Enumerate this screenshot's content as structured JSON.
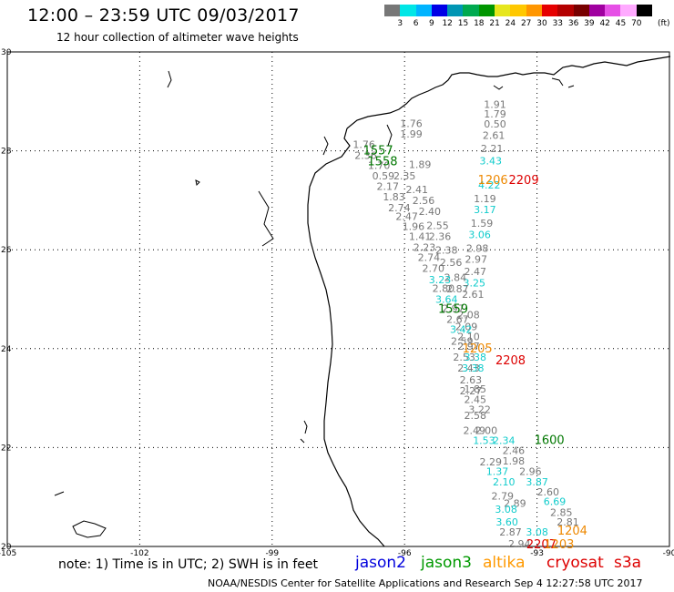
{
  "title": "12:00 – 23:59 UTC 09/03/2017",
  "subtitle": "12 hour collection of altimeter wave heights",
  "colorbar": {
    "colors": [
      "#777777",
      "#00e6e6",
      "#00b4ff",
      "#0000e6",
      "#0096b4",
      "#00aa50",
      "#009600",
      "#e6e61e",
      "#ffc800",
      "#ff9600",
      "#e60000",
      "#b40000",
      "#780000",
      "#a000a0",
      "#e650e6",
      "#ffaaff",
      "#000000"
    ],
    "labels": [
      "3",
      "6",
      "9",
      "12",
      "15",
      "18",
      "21",
      "24",
      "27",
      "30",
      "33",
      "36",
      "39",
      "42",
      "45",
      "70"
    ],
    "unit": "(ft)"
  },
  "map": {
    "x_ticks": [
      "-105",
      "-102",
      "-99",
      "-96",
      "-93",
      "-90"
    ],
    "y_ticks": [
      "20",
      "22",
      "24",
      "26",
      "28",
      "30"
    ],
    "lon_range": [
      -105,
      -90
    ],
    "lat_range": [
      20,
      30
    ]
  },
  "observations": [
    {
      "v": "1.91",
      "lon": -93.95,
      "lat": 28.87,
      "c": "#777777"
    },
    {
      "v": "1.79",
      "lon": -93.95,
      "lat": 28.67,
      "c": "#777777"
    },
    {
      "v": "0.50",
      "lon": -93.95,
      "lat": 28.47,
      "c": "#777777"
    },
    {
      "v": "2.61",
      "lon": -93.98,
      "lat": 28.24,
      "c": "#777777"
    },
    {
      "v": "2.21",
      "lon": -94.02,
      "lat": 27.97,
      "c": "#777777"
    },
    {
      "v": "3.43",
      "lon": -94.05,
      "lat": 27.73,
      "c": "#11cccc"
    },
    {
      "v": "4.22",
      "lon": -94.08,
      "lat": 27.24,
      "c": "#11cccc"
    },
    {
      "v": "1.19",
      "lon": -94.18,
      "lat": 26.96,
      "c": "#777777"
    },
    {
      "v": "3.17",
      "lon": -94.18,
      "lat": 26.74,
      "c": "#11cccc"
    },
    {
      "v": "1.59",
      "lon": -94.25,
      "lat": 26.46,
      "c": "#777777"
    },
    {
      "v": "3.06",
      "lon": -94.3,
      "lat": 26.23,
      "c": "#11cccc"
    },
    {
      "v": "2.98",
      "lon": -94.35,
      "lat": 25.96,
      "c": "#777777"
    },
    {
      "v": "2.97",
      "lon": -94.38,
      "lat": 25.74,
      "c": "#777777"
    },
    {
      "v": "2.47",
      "lon": -94.4,
      "lat": 25.49,
      "c": "#777777"
    },
    {
      "v": "3.25",
      "lon": -94.42,
      "lat": 25.26,
      "c": "#11cccc"
    },
    {
      "v": "2.61",
      "lon": -94.45,
      "lat": 25.03,
      "c": "#777777"
    },
    {
      "v": "2.08",
      "lon": -94.55,
      "lat": 24.61,
      "c": "#777777"
    },
    {
      "v": "2.09",
      "lon": -94.6,
      "lat": 24.37,
      "c": "#777777"
    },
    {
      "v": "1.76",
      "lon": -95.85,
      "lat": 28.48,
      "c": "#777777"
    },
    {
      "v": "1.99",
      "lon": -95.85,
      "lat": 28.27,
      "c": "#777777"
    },
    {
      "v": "1.76",
      "lon": -96.92,
      "lat": 28.06,
      "c": "#777777"
    },
    {
      "v": "2.36",
      "lon": -96.88,
      "lat": 27.84,
      "c": "#777777"
    },
    {
      "v": "1.70",
      "lon": -96.58,
      "lat": 27.63,
      "c": "#777777"
    },
    {
      "v": "1.89",
      "lon": -95.65,
      "lat": 27.65,
      "c": "#777777"
    },
    {
      "v": "0.59",
      "lon": -96.48,
      "lat": 27.42,
      "c": "#777777"
    },
    {
      "v": "2.35",
      "lon": -96.0,
      "lat": 27.42,
      "c": "#777777"
    },
    {
      "v": "2.17",
      "lon": -96.38,
      "lat": 27.21,
      "c": "#777777"
    },
    {
      "v": "2.41",
      "lon": -95.72,
      "lat": 27.15,
      "c": "#777777"
    },
    {
      "v": "1.83",
      "lon": -96.24,
      "lat": 27.0,
      "c": "#777777"
    },
    {
      "v": "2.56",
      "lon": -95.57,
      "lat": 26.92,
      "c": "#777777"
    },
    {
      "v": "2.74",
      "lon": -96.12,
      "lat": 26.78,
      "c": "#777777"
    },
    {
      "v": "2.40",
      "lon": -95.43,
      "lat": 26.7,
      "c": "#777777"
    },
    {
      "v": "2.47",
      "lon": -95.95,
      "lat": 26.6,
      "c": "#777777"
    },
    {
      "v": "2.55",
      "lon": -95.25,
      "lat": 26.42,
      "c": "#777777"
    },
    {
      "v": "1.96",
      "lon": -95.8,
      "lat": 26.4,
      "c": "#777777"
    },
    {
      "v": "1.41",
      "lon": -95.65,
      "lat": 26.2,
      "c": "#777777"
    },
    {
      "v": "2.36",
      "lon": -95.2,
      "lat": 26.2,
      "c": "#777777"
    },
    {
      "v": "2.23",
      "lon": -95.55,
      "lat": 25.98,
      "c": "#777777"
    },
    {
      "v": "2.38",
      "lon": -95.05,
      "lat": 25.92,
      "c": "#777777"
    },
    {
      "v": "2.74",
      "lon": -95.45,
      "lat": 25.77,
      "c": "#777777"
    },
    {
      "v": "2.56",
      "lon": -94.95,
      "lat": 25.67,
      "c": "#777777"
    },
    {
      "v": "2.70",
      "lon": -95.35,
      "lat": 25.55,
      "c": "#777777"
    },
    {
      "v": "2.84",
      "lon": -94.85,
      "lat": 25.37,
      "c": "#777777"
    },
    {
      "v": "3.23",
      "lon": -95.2,
      "lat": 25.32,
      "c": "#11cccc"
    },
    {
      "v": "2.87",
      "lon": -94.8,
      "lat": 25.14,
      "c": "#777777"
    },
    {
      "v": "2.80",
      "lon": -95.12,
      "lat": 25.15,
      "c": "#777777"
    },
    {
      "v": "3.64",
      "lon": -95.05,
      "lat": 24.93,
      "c": "#11cccc"
    },
    {
      "v": "2.97",
      "lon": -94.9,
      "lat": 24.74,
      "c": "#777777"
    },
    {
      "v": "2.67",
      "lon": -94.8,
      "lat": 24.52,
      "c": "#777777"
    },
    {
      "v": "3.42",
      "lon": -94.72,
      "lat": 24.32,
      "c": "#11cccc"
    },
    {
      "v": "2.10",
      "lon": -94.55,
      "lat": 24.17,
      "c": "#777777"
    },
    {
      "v": "2.59",
      "lon": -94.7,
      "lat": 24.08,
      "c": "#777777"
    },
    {
      "v": "2.97",
      "lon": -94.55,
      "lat": 23.98,
      "c": "#777777"
    },
    {
      "v": "2.53",
      "lon": -94.65,
      "lat": 23.76,
      "c": "#777777"
    },
    {
      "v": "3.38",
      "lon": -94.4,
      "lat": 23.76,
      "c": "#11cccc"
    },
    {
      "v": "2.43",
      "lon": -94.55,
      "lat": 23.54,
      "c": "#777777"
    },
    {
      "v": "3.38",
      "lon": -94.45,
      "lat": 23.54,
      "c": "#11cccc"
    },
    {
      "v": "2.63",
      "lon": -94.5,
      "lat": 23.3,
      "c": "#777777"
    },
    {
      "v": "2.27",
      "lon": -94.5,
      "lat": 23.08,
      "c": "#777777"
    },
    {
      "v": "1.85",
      "lon": -94.4,
      "lat": 23.11,
      "c": "#777777"
    },
    {
      "v": "2.45",
      "lon": -94.4,
      "lat": 22.9,
      "c": "#777777"
    },
    {
      "v": "3.22",
      "lon": -94.3,
      "lat": 22.7,
      "c": "#777777"
    },
    {
      "v": "2.58",
      "lon": -94.4,
      "lat": 22.58,
      "c": "#777777"
    },
    {
      "v": "2.00",
      "lon": -94.15,
      "lat": 22.27,
      "c": "#777777"
    },
    {
      "v": "2.49",
      "lon": -94.42,
      "lat": 22.27,
      "c": "#777777"
    },
    {
      "v": "2.34",
      "lon": -93.75,
      "lat": 22.07,
      "c": "#11cccc"
    },
    {
      "v": "1.53",
      "lon": -94.2,
      "lat": 22.07,
      "c": "#11cccc"
    },
    {
      "v": "2.46",
      "lon": -93.53,
      "lat": 21.87,
      "c": "#777777"
    },
    {
      "v": "1.98",
      "lon": -93.53,
      "lat": 21.66,
      "c": "#777777"
    },
    {
      "v": "2.29",
      "lon": -94.05,
      "lat": 21.64,
      "c": "#777777"
    },
    {
      "v": "2.96",
      "lon": -93.15,
      "lat": 21.45,
      "c": "#777777"
    },
    {
      "v": "1.37",
      "lon": -93.9,
      "lat": 21.45,
      "c": "#11cccc"
    },
    {
      "v": "3.87",
      "lon": -93.0,
      "lat": 21.23,
      "c": "#11cccc"
    },
    {
      "v": "2.10",
      "lon": -93.75,
      "lat": 21.23,
      "c": "#11cccc"
    },
    {
      "v": "2.60",
      "lon": -92.75,
      "lat": 21.03,
      "c": "#777777"
    },
    {
      "v": "2.79",
      "lon": -93.78,
      "lat": 20.95,
      "c": "#777777"
    },
    {
      "v": "6.69",
      "lon": -92.6,
      "lat": 20.84,
      "c": "#11cccc"
    },
    {
      "v": "2.89",
      "lon": -93.5,
      "lat": 20.8,
      "c": "#777777"
    },
    {
      "v": "2.85",
      "lon": -92.45,
      "lat": 20.62,
      "c": "#777777"
    },
    {
      "v": "3.08",
      "lon": -93.7,
      "lat": 20.68,
      "c": "#11cccc"
    },
    {
      "v": "2.81",
      "lon": -92.3,
      "lat": 20.42,
      "c": "#777777"
    },
    {
      "v": "3.60",
      "lon": -93.68,
      "lat": 20.42,
      "c": "#11cccc"
    },
    {
      "v": "2.87",
      "lon": -93.6,
      "lat": 20.22,
      "c": "#777777"
    },
    {
      "v": "3.08",
      "lon": -93.0,
      "lat": 20.22,
      "c": "#11cccc"
    },
    {
      "v": "2.94",
      "lon": -93.4,
      "lat": 19.98,
      "c": "#777777"
    }
  ],
  "timestamps": [
    {
      "t": "1557",
      "lon": -96.6,
      "lat": 27.93,
      "c": "#007700"
    },
    {
      "t": "1558",
      "lon": -96.5,
      "lat": 27.71,
      "c": "#007700"
    },
    {
      "t": "1206",
      "lon": -94.0,
      "lat": 27.33,
      "c": "#ee8800"
    },
    {
      "t": "2209",
      "lon": -93.3,
      "lat": 27.33,
      "c": "#dd0000"
    },
    {
      "t": "1559",
      "lon": -94.9,
      "lat": 24.72,
      "c": "#007700"
    },
    {
      "t": "1205",
      "lon": -94.35,
      "lat": 23.92,
      "c": "#ee8800"
    },
    {
      "t": "2208",
      "lon": -93.6,
      "lat": 23.68,
      "c": "#dd0000"
    },
    {
      "t": "1600",
      "lon": -92.72,
      "lat": 22.07,
      "c": "#007700"
    },
    {
      "t": "1204",
      "lon": -92.2,
      "lat": 20.24,
      "c": "#ee8800"
    },
    {
      "t": "2207",
      "lon": -92.9,
      "lat": 19.96,
      "c": "#dd0000"
    },
    {
      "t": "1203",
      "lon": -92.5,
      "lat": 19.96,
      "c": "#ee8800"
    }
  ],
  "note": "note: 1) Time is in UTC; 2) SWH is in feet",
  "legend": [
    {
      "name": "jason2",
      "color": "#0000dd"
    },
    {
      "name": "jason3",
      "color": "#009900"
    },
    {
      "name": "altika",
      "color": "#ff9900"
    },
    {
      "name": "cryosat",
      "color": "#dd0000"
    },
    {
      "name": "s3a",
      "color": "#dd0000"
    }
  ],
  "credit": "NOAA/NESDIS Center for Satellite Applications and Research   Sep  4 12:27:58 UTC 2017"
}
